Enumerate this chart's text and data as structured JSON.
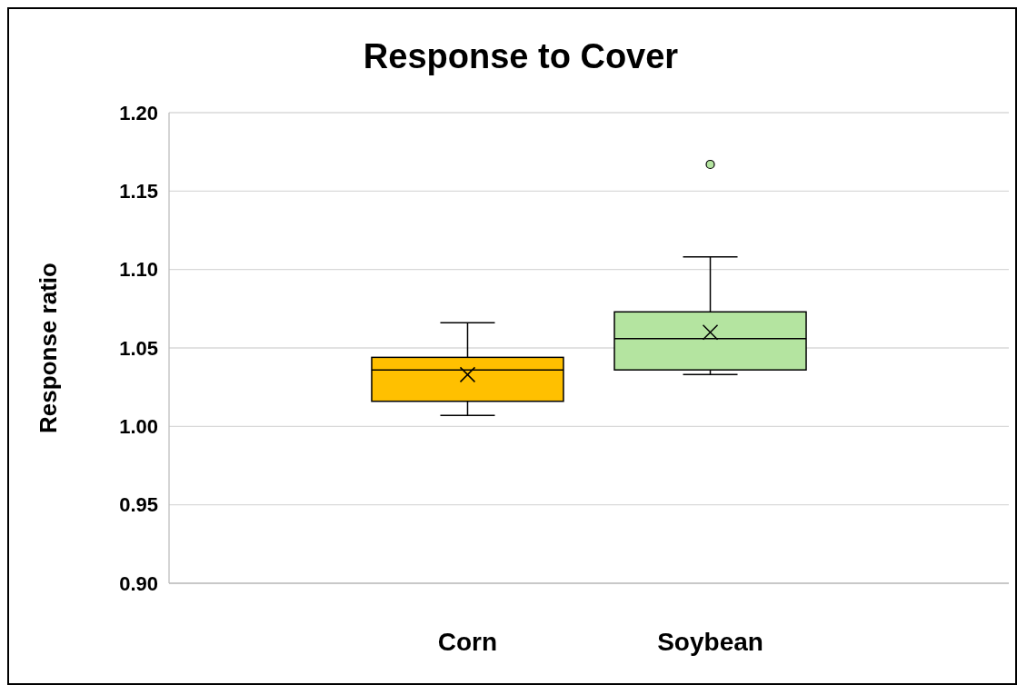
{
  "chart_data": {
    "type": "box",
    "title": "Response to Cover",
    "ylabel": "Response ratio",
    "categories": [
      "Corn",
      "Soybean"
    ],
    "boxes": [
      {
        "low": 1.007,
        "q1": 1.016,
        "median": 1.036,
        "q3": 1.044,
        "high": 1.066,
        "mean": 1.033
      },
      {
        "low": 1.033,
        "q1": 1.036,
        "median": 1.056,
        "q3": 1.073,
        "high": 1.108,
        "mean": 1.06,
        "outliers": [
          1.167
        ]
      }
    ],
    "colors": [
      "#ffc000",
      "#b4e4a0"
    ],
    "ylim": [
      0.9,
      1.2
    ],
    "yticks": [
      {
        "value": 0.9,
        "label": "0.90"
      },
      {
        "value": 0.95,
        "label": "0.95"
      },
      {
        "value": 1.0,
        "label": "1.00"
      },
      {
        "value": 1.05,
        "label": "1.05"
      },
      {
        "value": 1.1,
        "label": "1.10"
      },
      {
        "value": 1.15,
        "label": "1.15"
      },
      {
        "value": 1.2,
        "label": "1.20"
      }
    ],
    "grid": "y"
  }
}
